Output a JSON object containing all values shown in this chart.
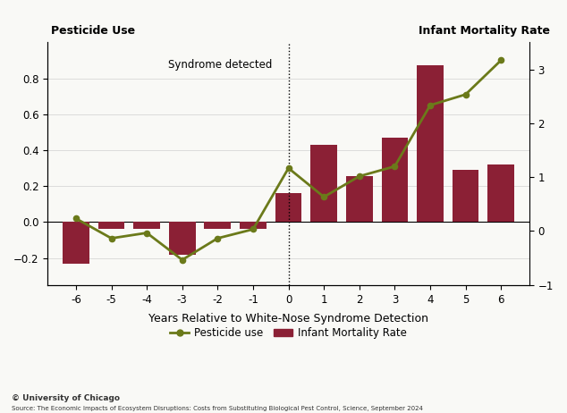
{
  "years": [
    -6,
    -5,
    -4,
    -3,
    -2,
    -1,
    0,
    1,
    2,
    3,
    4,
    5,
    6
  ],
  "bar_values": [
    -0.23,
    -0.04,
    -0.04,
    -0.18,
    -0.04,
    -0.04,
    0.16,
    0.43,
    0.255,
    0.47,
    0.87,
    0.29,
    0.32
  ],
  "line_values": [
    0.02,
    -0.09,
    -0.06,
    -0.21,
    -0.09,
    -0.04,
    0.3,
    0.14,
    0.255,
    0.31,
    0.65,
    0.71,
    0.9
  ],
  "bar_color": "#8B2035",
  "line_color": "#6B7A1A",
  "left_ylabel": "Pesticide Use",
  "right_ylabel": "Infant Mortality Rate",
  "xlabel": "Years Relative to White-Nose Syndrome Detection",
  "annotation_text": "Syndrome detected",
  "legend_pesticide": "Pesticide use",
  "legend_mortality": "Infant Mortality Rate",
  "source_text": "Source: The Economic Impacts of Ecosystem Disruptions: Costs from Substituting Biological Pest Control, Science, September 2024",
  "copyright_text": "© University of Chicago",
  "left_ylim": [
    -0.35,
    1.0
  ],
  "right_ylim": [
    -1.0,
    3.5
  ],
  "left_yticks": [
    -0.2,
    0.0,
    0.2,
    0.4,
    0.6,
    0.8
  ],
  "right_yticks": [
    -1,
    0,
    1,
    2,
    3
  ],
  "background_color": "#f9f9f6"
}
